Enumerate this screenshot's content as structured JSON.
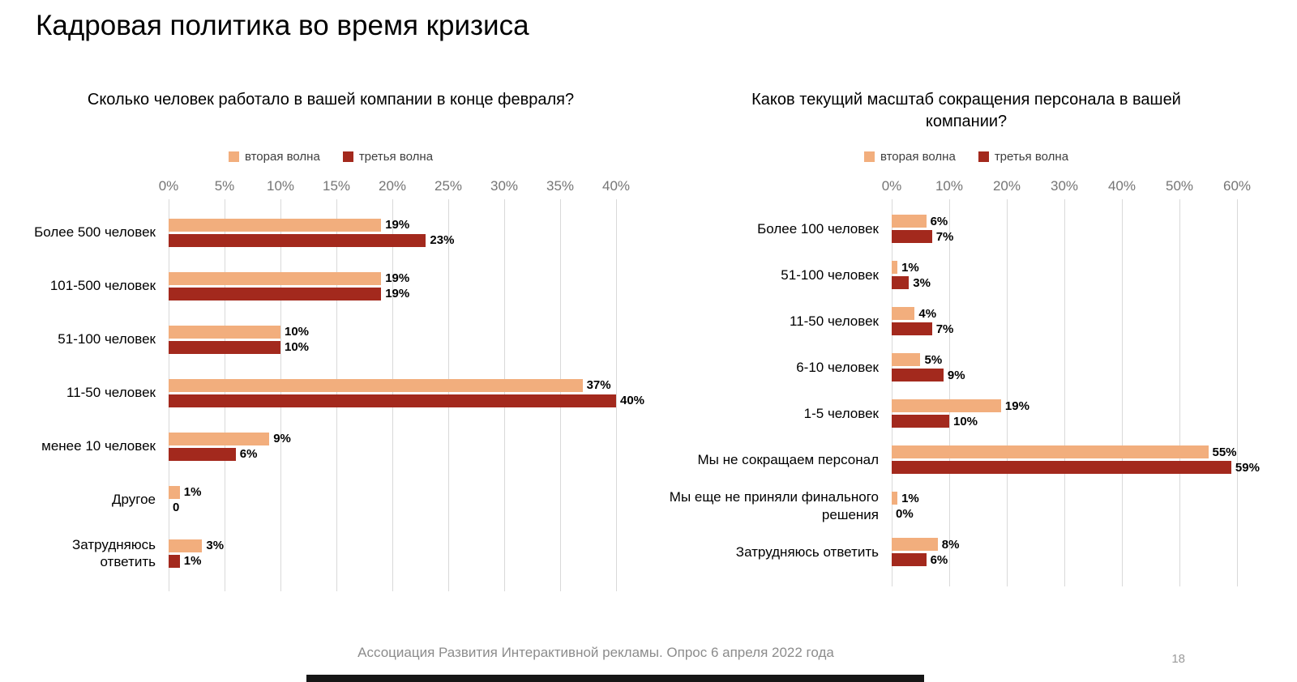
{
  "page": {
    "title": "Кадровая политика во время кризиса",
    "footer": "Ассоциация Развития Интерактивной рекламы. Опрос 6 апреля 2022 года",
    "page_number": "18"
  },
  "colors": {
    "series1": "#F2AE7D",
    "series2": "#A3291D",
    "grid": "#D9D9D9"
  },
  "chart_data": [
    {
      "type": "bar",
      "orientation": "horizontal",
      "title": "Сколько человек работало в вашей компании в конце февраля?",
      "legend_position": "top",
      "axis_position": "top",
      "grid": true,
      "categories": [
        "Более 500 человек",
        "101-500 человек",
        "51-100 человек",
        "11-50 человек",
        "менее 10 человек",
        "Другое",
        "Затрудняюсь ответить"
      ],
      "series": [
        {
          "name": "вторая волна",
          "values": [
            19,
            19,
            10,
            37,
            9,
            1,
            3
          ],
          "labels": [
            "19%",
            "19%",
            "10%",
            "37%",
            "9%",
            "1%",
            "3%"
          ]
        },
        {
          "name": "третья волна",
          "values": [
            23,
            19,
            10,
            40,
            6,
            0,
            1
          ],
          "labels": [
            "23%",
            "19%",
            "10%",
            "40%",
            "6%",
            "0",
            "1%"
          ]
        }
      ],
      "xlim": [
        0,
        40
      ],
      "ticks": [
        "0%",
        "5%",
        "10%",
        "15%",
        "20%",
        "25%",
        "30%",
        "35%",
        "40%"
      ]
    },
    {
      "type": "bar",
      "orientation": "horizontal",
      "title": "Каков текущий масштаб сокращения персонала в вашей компании?",
      "legend_position": "top",
      "axis_position": "top",
      "grid": true,
      "categories": [
        "Более 100 человек",
        "51-100 человек",
        "11-50 человек",
        "6-10 человек",
        "1-5 человек",
        "Мы не сокращаем персонал",
        "Мы еще не приняли финального решения",
        "Затрудняюсь ответить"
      ],
      "series": [
        {
          "name": "вторая волна",
          "values": [
            6,
            1,
            4,
            5,
            19,
            55,
            1,
            8
          ],
          "labels": [
            "6%",
            "1%",
            "4%",
            "5%",
            "19%",
            "55%",
            "1%",
            "8%"
          ]
        },
        {
          "name": "третья волна",
          "values": [
            7,
            3,
            7,
            9,
            10,
            59,
            0,
            6
          ],
          "labels": [
            "7%",
            "3%",
            "7%",
            "9%",
            "10%",
            "59%",
            "0%",
            "6%"
          ]
        }
      ],
      "xlim": [
        0,
        60
      ],
      "ticks": [
        "0%",
        "10%",
        "20%",
        "30%",
        "40%",
        "50%",
        "60%"
      ]
    }
  ]
}
